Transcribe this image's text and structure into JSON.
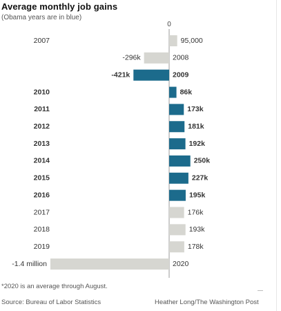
{
  "title": "Average monthly job gains",
  "subtitle": "(Obama years are in blue)",
  "footnote": "*2020 is an average through August.",
  "source": "Source: Bureau of Labor Statistics",
  "credit": "Heather Long/The Washington Post",
  "colors": {
    "obama": "#1c6b8c",
    "other": "#d6d6d1",
    "axis": "#999999"
  },
  "chart_data": {
    "type": "bar",
    "orientation": "horizontal",
    "zero_label": "0",
    "categories": [
      "2007",
      "2008",
      "2009",
      "2010",
      "2011",
      "2012",
      "2013",
      "2014",
      "2015",
      "2016",
      "2017",
      "2018",
      "2019",
      "2020"
    ],
    "values": [
      95000,
      -296000,
      -421000,
      86000,
      173000,
      181000,
      192000,
      250000,
      227000,
      195000,
      176000,
      193000,
      178000,
      -1400000
    ],
    "value_labels": [
      "95,000",
      "-296k",
      "-421k",
      "86k",
      "173k",
      "181k",
      "192k",
      "250k",
      "227k",
      "195k",
      "176k",
      "193k",
      "178k",
      "-1.4 million"
    ],
    "obama_years": [
      false,
      false,
      true,
      true,
      true,
      true,
      true,
      true,
      true,
      true,
      false,
      false,
      false,
      false
    ],
    "xlim": [
      -1400000,
      250000
    ],
    "grid": false,
    "legend": "none"
  }
}
